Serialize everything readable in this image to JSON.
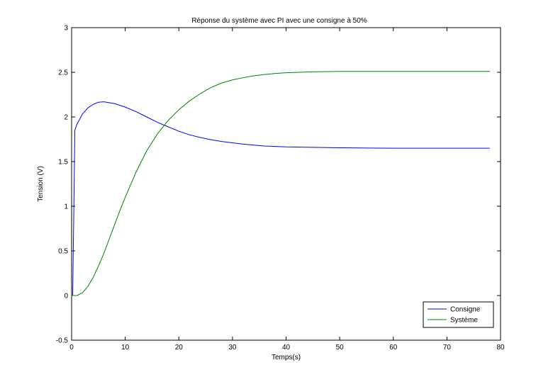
{
  "chart_data": {
    "type": "line",
    "title": "Réponse du système avec PI avec une consigne à 50%",
    "xlabel": "Temps(s)",
    "ylabel": "Tension (V)",
    "xlim": [
      0,
      80
    ],
    "ylim": [
      -0.5,
      3
    ],
    "xticks": [
      0,
      10,
      20,
      30,
      40,
      50,
      60,
      70,
      80
    ],
    "yticks": [
      -0.5,
      0,
      0.5,
      1,
      1.5,
      2,
      2.5,
      3
    ],
    "xtick_labels": [
      "0",
      "10",
      "20",
      "30",
      "40",
      "50",
      "60",
      "70",
      "80"
    ],
    "ytick_labels": [
      "-0.5",
      "0",
      "0.5",
      "1",
      "1.5",
      "2",
      "2.5",
      "3"
    ],
    "grid": false,
    "legend_position": "bottom-right",
    "series": [
      {
        "name": "Consigne",
        "color": "#0000ff",
        "x": [
          0,
          0.2,
          0.4,
          0.6,
          1,
          2,
          3,
          4,
          5,
          6,
          7,
          8,
          10,
          12,
          14,
          16,
          18,
          20,
          22,
          24,
          26,
          28,
          30,
          32,
          34,
          36,
          38,
          40,
          45,
          50,
          55,
          60,
          65,
          70,
          75,
          78
        ],
        "y": [
          0,
          0,
          0.9,
          1.85,
          1.92,
          2.03,
          2.1,
          2.14,
          2.165,
          2.17,
          2.16,
          2.15,
          2.11,
          2.06,
          2.0,
          1.94,
          1.89,
          1.84,
          1.8,
          1.77,
          1.745,
          1.725,
          1.71,
          1.695,
          1.685,
          1.675,
          1.67,
          1.665,
          1.66,
          1.655,
          1.652,
          1.65,
          1.65,
          1.65,
          1.65,
          1.65
        ]
      },
      {
        "name": "Système",
        "color": "#008000",
        "x": [
          0,
          1,
          2,
          3,
          4,
          5,
          6,
          7,
          8,
          9,
          10,
          12,
          14,
          16,
          18,
          20,
          22,
          24,
          26,
          28,
          30,
          32,
          34,
          36,
          38,
          40,
          45,
          50,
          55,
          60,
          65,
          70,
          75,
          78
        ],
        "y": [
          0,
          0,
          0.03,
          0.1,
          0.2,
          0.33,
          0.47,
          0.63,
          0.79,
          0.95,
          1.1,
          1.38,
          1.62,
          1.81,
          1.96,
          2.08,
          2.18,
          2.26,
          2.33,
          2.38,
          2.415,
          2.44,
          2.46,
          2.475,
          2.487,
          2.495,
          2.505,
          2.51,
          2.51,
          2.51,
          2.51,
          2.51,
          2.51,
          2.51
        ]
      }
    ]
  }
}
